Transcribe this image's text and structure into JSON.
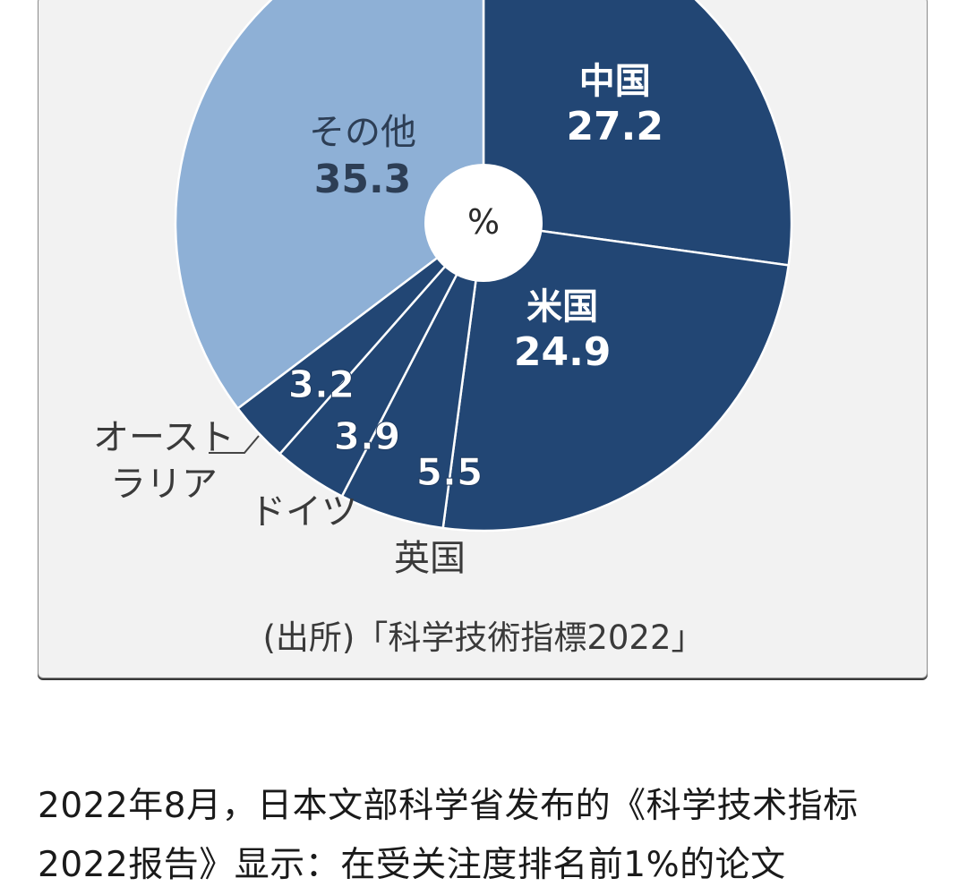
{
  "chart_data": {
    "type": "pie",
    "center_label": "%",
    "slices": [
      {
        "name": "中国",
        "value": 27.2,
        "label": "27.2"
      },
      {
        "name": "米国",
        "value": 24.9,
        "label": "24.9"
      },
      {
        "name": "英国",
        "value": 5.5,
        "label": "5.5"
      },
      {
        "name": "ドイツ",
        "value": 3.9,
        "label": "3.9"
      },
      {
        "name": "オーストラリア",
        "name_lines": [
          "オースト",
          "ラリア"
        ],
        "value": 3.2,
        "label": "3.2"
      },
      {
        "name": "その他",
        "value": 35.3,
        "label": "35.3"
      }
    ],
    "colors": {
      "dark": "#224674",
      "light": "#8eb0d6"
    },
    "source": "(出所)「科学技術指標2022」"
  },
  "article": {
    "text": "2022年8月，日本文部科学省发布的《科学技术指标2022报告》显示：在受关注度排名前1%的论文"
  }
}
